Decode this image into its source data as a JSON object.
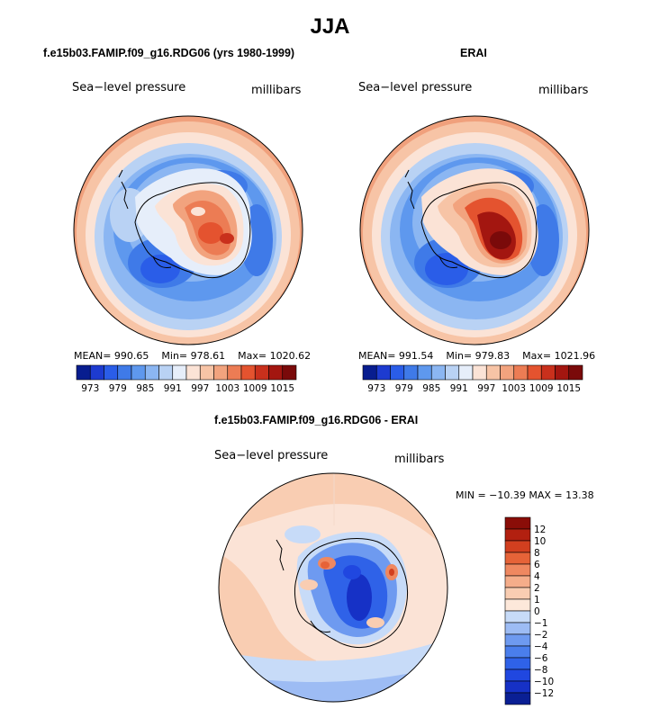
{
  "title": "JJA",
  "panels": [
    {
      "title": "f.e15b03.FAMIP.f09_g16.RDG06 (yrs 1980-1999)",
      "variable": "Sea−level pressure",
      "units": "millibars",
      "stats": {
        "mean": "MEAN= 990.65",
        "min": "Min= 978.61",
        "max": "Max= 1020.62"
      }
    },
    {
      "title": "ERAI",
      "variable": "Sea−level pressure",
      "units": "millibars",
      "stats": {
        "mean": "MEAN= 991.54",
        "min": "Min= 979.83",
        "max": "Max= 1021.96"
      }
    },
    {
      "title": "f.e15b03.FAMIP.f09_g16.RDG06 - ERAI",
      "variable": "Sea−level pressure",
      "units": "millibars",
      "minmax": "MIN = −10.39  MAX =   13.38"
    }
  ],
  "colors": {
    "slp_scale": [
      "#081d8f",
      "#1d3bd0",
      "#2a5de8",
      "#3f7ae8",
      "#5e98ee",
      "#8bb6f2",
      "#b9d2f4",
      "#e6eefa",
      "#fbe3d6",
      "#f7c4a6",
      "#f2a37e",
      "#ec7c54",
      "#e4532f",
      "#c9301c",
      "#a31610",
      "#7a0a0a"
    ],
    "diff_scale": [
      "#0a1f94",
      "#1631c6",
      "#2047e0",
      "#2f62e8",
      "#4a7eec",
      "#6e9af0",
      "#9dbcf4",
      "#c7dbf8",
      "#fde8da",
      "#f9cdb2",
      "#f5ad8a",
      "#ef8860",
      "#e66338",
      "#d23f1f",
      "#b22010",
      "#8a0d08"
    ]
  },
  "chart_data": [
    {
      "type": "heatmap",
      "projection": "south-polar stereographic",
      "title": "f.e15b03.FAMIP.f09_g16.RDG06 (yrs 1980-1999)",
      "variable": "Sea−level pressure",
      "units": "millibars",
      "mean": 990.65,
      "min": 978.61,
      "max": 1020.62,
      "colorbar_levels": [
        973,
        976,
        979,
        982,
        985,
        988,
        991,
        994,
        997,
        1000,
        1003,
        1006,
        1009,
        1012,
        1015
      ],
      "colorbar_tick_labels": [
        "973",
        "979",
        "985",
        "991",
        "997",
        "1003",
        "1009",
        "1015"
      ],
      "colorbar_orientation": "horizontal"
    },
    {
      "type": "heatmap",
      "projection": "south-polar stereographic",
      "title": "ERAI",
      "variable": "Sea−level pressure",
      "units": "millibars",
      "mean": 991.54,
      "min": 979.83,
      "max": 1021.96,
      "colorbar_levels": [
        973,
        976,
        979,
        982,
        985,
        988,
        991,
        994,
        997,
        1000,
        1003,
        1006,
        1009,
        1012,
        1015
      ],
      "colorbar_tick_labels": [
        "973",
        "979",
        "985",
        "991",
        "997",
        "1003",
        "1009",
        "1015"
      ],
      "colorbar_orientation": "horizontal"
    },
    {
      "type": "heatmap",
      "projection": "south-polar stereographic",
      "title": "f.e15b03.FAMIP.f09_g16.RDG06 - ERAI",
      "variable": "Sea−level pressure",
      "units": "millibars",
      "min": -10.39,
      "max": 13.38,
      "colorbar_levels": [
        -12,
        -10,
        -8,
        -6,
        -4,
        -2,
        -1,
        0,
        1,
        2,
        4,
        6,
        8,
        10,
        12
      ],
      "colorbar_tick_labels": [
        "12",
        "10",
        "8",
        "6",
        "4",
        "2",
        "1",
        "0",
        "−1",
        "−2",
        "−4",
        "−6",
        "−8",
        "−10",
        "−12"
      ],
      "colorbar_orientation": "vertical"
    }
  ]
}
